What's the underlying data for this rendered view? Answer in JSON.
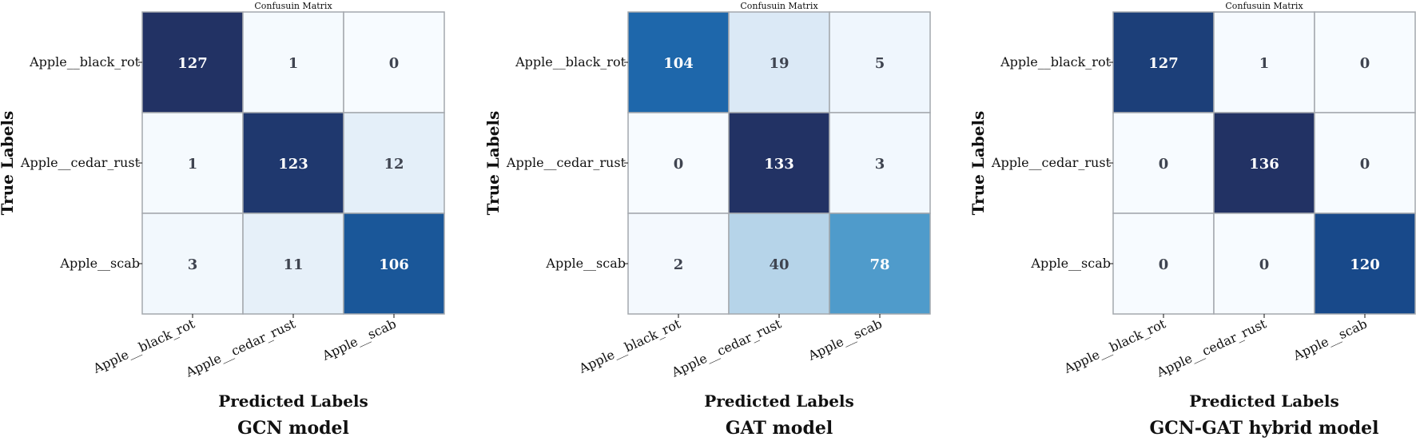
{
  "chart_data": [
    {
      "type": "heatmap",
      "title": "Confusuin Matrix",
      "subtitle": "GCN model",
      "xlabel": "Predicted Labels",
      "ylabel": "True Labels",
      "x_categories": [
        "Apple__black_rot",
        "Apple__cedar_rust",
        "Apple__scab"
      ],
      "y_categories": [
        "Apple__black_rot",
        "Apple__cedar_rust",
        "Apple__scab"
      ],
      "values": [
        [
          127,
          1,
          0
        ],
        [
          1,
          123,
          12
        ],
        [
          3,
          11,
          106
        ]
      ],
      "colormap": "Blues",
      "grid": false
    },
    {
      "type": "heatmap",
      "title": "Confusuin Matrix",
      "subtitle": "GAT model",
      "xlabel": "Predicted Labels",
      "ylabel": "True Labels",
      "x_categories": [
        "Apple__black_rot",
        "Apple__cedar_rust",
        "Apple__scab"
      ],
      "y_categories": [
        "Apple__black_rot",
        "Apple__cedar_rust",
        "Apple__scab"
      ],
      "values": [
        [
          104,
          19,
          5
        ],
        [
          0,
          133,
          3
        ],
        [
          2,
          40,
          78
        ]
      ],
      "colormap": "Blues",
      "grid": false
    },
    {
      "type": "heatmap",
      "title": "Confusuin Matrix",
      "subtitle": "GCN-GAT hybrid model",
      "xlabel": "Predicted Labels",
      "ylabel": "True Labels",
      "x_categories": [
        "Apple__black_rot",
        "Apple__cedar_rust",
        "Apple__scab"
      ],
      "y_categories": [
        "Apple__black_rot",
        "Apple__cedar_rust",
        "Apple__scab"
      ],
      "values": [
        [
          127,
          1,
          0
        ],
        [
          0,
          136,
          0
        ],
        [
          0,
          0,
          120
        ]
      ],
      "colormap": "Blues",
      "grid": false
    }
  ],
  "colors": {
    "cell_border": "#a4a8ad",
    "dark_text": "#ffffff",
    "light_text": "#3f4450",
    "axis_text": "#111111"
  }
}
